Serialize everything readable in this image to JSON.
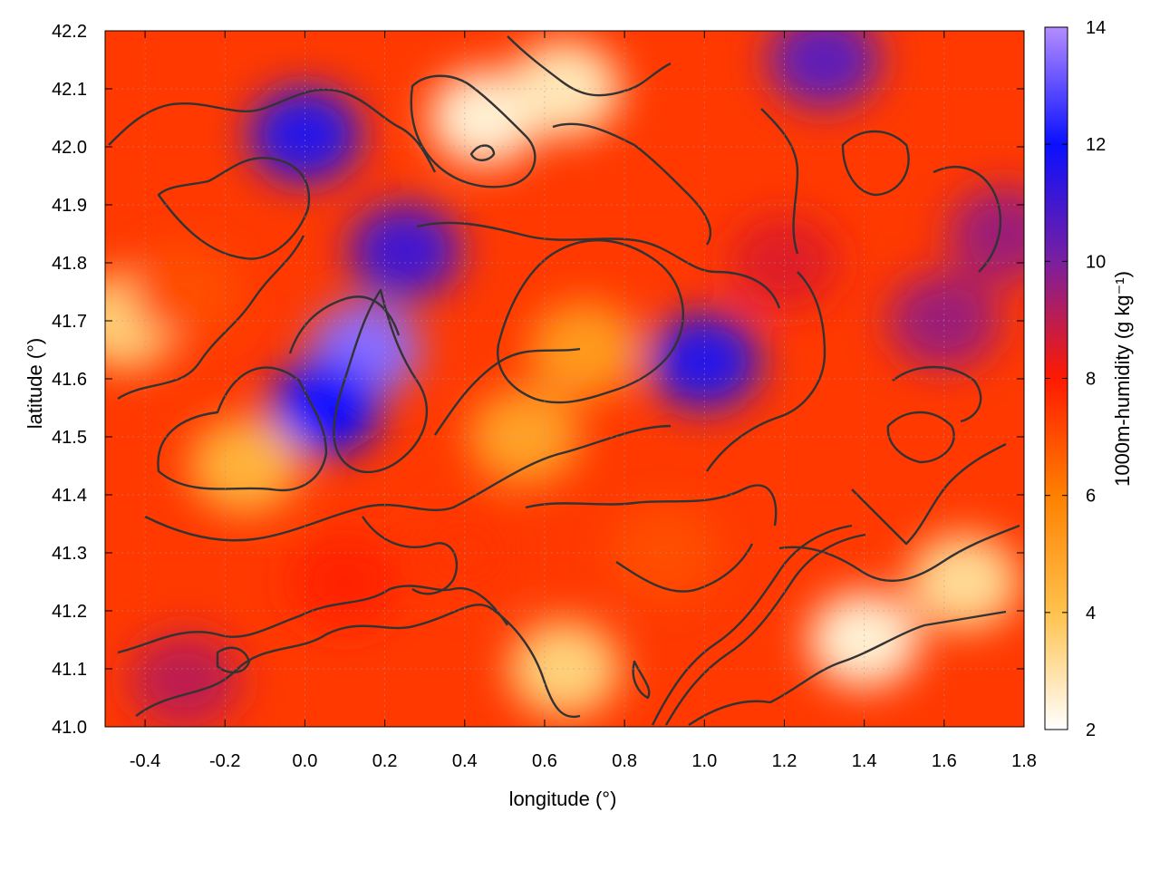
{
  "chart_data": {
    "type": "heatmap",
    "title": "",
    "xlabel": "longitude (°)",
    "ylabel": "latitude (°)",
    "colorbar_label": "1000m-humidity (g kg⁻¹)",
    "xlim": [
      -0.5,
      1.8
    ],
    "ylim": [
      41.0,
      42.2
    ],
    "x_ticks": [
      "-0.4",
      "-0.2",
      "0.0",
      "0.2",
      "0.4",
      "0.6",
      "0.8",
      "1.0",
      "1.2",
      "1.4",
      "1.6",
      "1.8"
    ],
    "x_tick_values": [
      -0.4,
      -0.2,
      0.0,
      0.2,
      0.4,
      0.6,
      0.8,
      1.0,
      1.2,
      1.4,
      1.6,
      1.8
    ],
    "y_ticks": [
      "41.0",
      "41.1",
      "41.2",
      "41.3",
      "41.4",
      "41.5",
      "41.6",
      "41.7",
      "41.8",
      "41.9",
      "42.0",
      "42.1",
      "42.2"
    ],
    "y_tick_values": [
      41.0,
      41.1,
      41.2,
      41.3,
      41.4,
      41.5,
      41.6,
      41.7,
      41.8,
      41.9,
      42.0,
      42.1,
      42.2
    ],
    "colorbar_range": [
      2,
      14
    ],
    "colorbar_ticks": [
      "2",
      "4",
      "6",
      "8",
      "10",
      "12",
      "14"
    ],
    "colorbar_tick_values": [
      2,
      4,
      6,
      8,
      10,
      12,
      14
    ],
    "colormap": [
      {
        "value": 2,
        "color": "#ffffff"
      },
      {
        "value": 4,
        "color": "#ffc24d"
      },
      {
        "value": 6,
        "color": "#ff8000"
      },
      {
        "value": 8,
        "color": "#ff1a00"
      },
      {
        "value": 10,
        "color": "#7a1fa0"
      },
      {
        "value": 12,
        "color": "#0a10ff"
      },
      {
        "value": 14,
        "color": "#b48cff"
      }
    ],
    "grid": true,
    "contours": true,
    "field_features": [
      {
        "lon": 0.15,
        "lat": 41.65,
        "value": 13.5
      },
      {
        "lon": 0.05,
        "lat": 41.55,
        "value": 12.0
      },
      {
        "lon": 0.0,
        "lat": 42.02,
        "value": 11.5
      },
      {
        "lon": 0.25,
        "lat": 41.82,
        "value": 11.0
      },
      {
        "lon": 1.0,
        "lat": 41.63,
        "value": 11.5
      },
      {
        "lon": 1.3,
        "lat": 42.15,
        "value": 10.5
      },
      {
        "lon": 1.6,
        "lat": 41.7,
        "value": 9.5
      },
      {
        "lon": 1.75,
        "lat": 41.85,
        "value": 9.5
      },
      {
        "lon": -0.3,
        "lat": 41.08,
        "value": 9.0
      },
      {
        "lon": 0.7,
        "lat": 41.65,
        "value": 5.2
      },
      {
        "lon": 0.55,
        "lat": 41.5,
        "value": 5.0
      },
      {
        "lon": -0.15,
        "lat": 41.45,
        "value": 4.5
      },
      {
        "lon": -0.45,
        "lat": 41.7,
        "value": 3.5
      },
      {
        "lon": 0.45,
        "lat": 42.05,
        "value": 2.5
      },
      {
        "lon": 0.65,
        "lat": 42.1,
        "value": 2.8
      },
      {
        "lon": 1.4,
        "lat": 41.15,
        "value": 2.5
      },
      {
        "lon": 1.65,
        "lat": 41.25,
        "value": 3.2
      },
      {
        "lon": 0.65,
        "lat": 41.1,
        "value": 3.5
      },
      {
        "lon": 0.9,
        "lat": 41.3,
        "value": 7.0
      },
      {
        "lon": 0.4,
        "lat": 41.3,
        "value": 7.5
      },
      {
        "lon": -0.3,
        "lat": 41.75,
        "value": 7.0
      },
      {
        "lon": 1.2,
        "lat": 41.8,
        "value": 8.5
      },
      {
        "lon": 0.1,
        "lat": 41.25,
        "value": 7.8
      }
    ],
    "background_value": 7.4
  }
}
